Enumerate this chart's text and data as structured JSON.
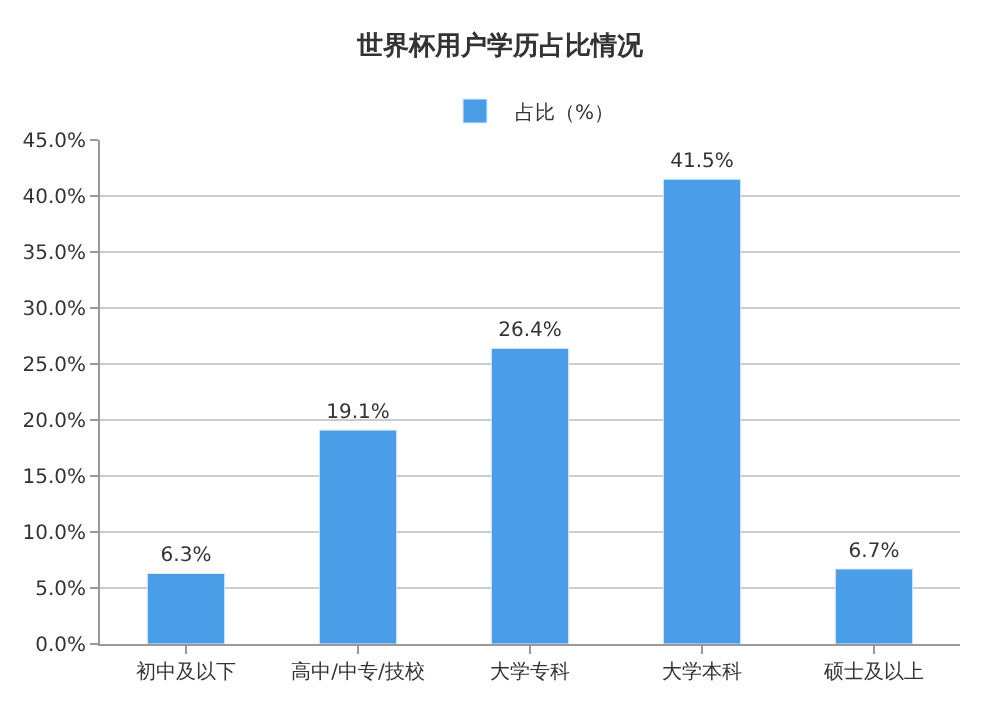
{
  "chart_data": {
    "type": "bar",
    "title": "世界杯用户学历占比情况",
    "categories": [
      "初中及以下",
      "高中/中专/技校",
      "大学专科",
      "大学本科",
      "硕士及以上"
    ],
    "series": [
      {
        "name": "占比（%）",
        "color": "#4a9ee8",
        "values": [
          6.3,
          19.1,
          26.4,
          41.5,
          6.7
        ],
        "value_labels": [
          "6.3%",
          "19.1%",
          "26.4%",
          "41.5%",
          "6.7%"
        ]
      }
    ],
    "ylim": [
      0,
      45
    ],
    "yticks": [
      {
        "value": 0,
        "label": "0.0%"
      },
      {
        "value": 5,
        "label": "5.0%"
      },
      {
        "value": 10,
        "label": "10.0%"
      },
      {
        "value": 15,
        "label": "15.0%"
      },
      {
        "value": 20,
        "label": "20.0%"
      },
      {
        "value": 25,
        "label": "25.0%"
      },
      {
        "value": 30,
        "label": "30.0%"
      },
      {
        "value": 35,
        "label": "35.0%"
      },
      {
        "value": 40,
        "label": "40.0%"
      },
      {
        "value": 45,
        "label": "45.0%"
      }
    ],
    "grid": "y",
    "legend": "top"
  }
}
